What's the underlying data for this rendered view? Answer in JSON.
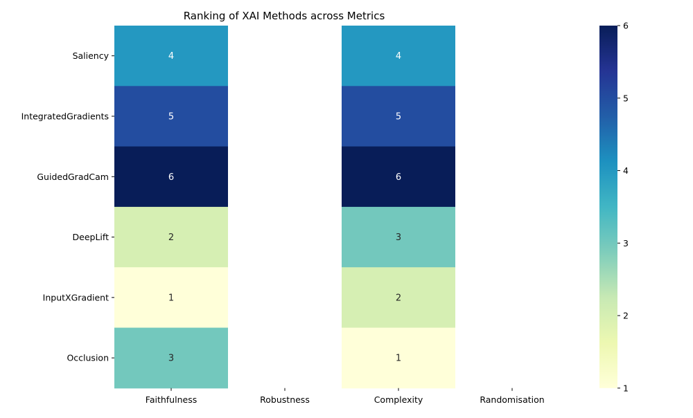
{
  "chart_data": {
    "type": "heatmap",
    "title": "Ranking of XAI Methods across Metrics",
    "xlabel": "",
    "ylabel": "",
    "columns": [
      "Faithfulness",
      "Robustness",
      "Complexity",
      "Randomisation"
    ],
    "rows": [
      "Saliency",
      "IntegratedGradients",
      "GuidedGradCam",
      "DeepLift",
      "InputXGradient",
      "Occlusion"
    ],
    "values": [
      [
        4,
        null,
        4,
        null
      ],
      [
        5,
        null,
        5,
        null
      ],
      [
        6,
        null,
        6,
        null
      ],
      [
        2,
        null,
        3,
        null
      ],
      [
        1,
        null,
        2,
        null
      ],
      [
        3,
        null,
        1,
        null
      ]
    ],
    "colormap": "YlGnBu",
    "vmin": 1,
    "vmax": 6,
    "colorbar_ticks": [
      1,
      2,
      3,
      4,
      5,
      6
    ],
    "annotations": true,
    "grid": false
  }
}
